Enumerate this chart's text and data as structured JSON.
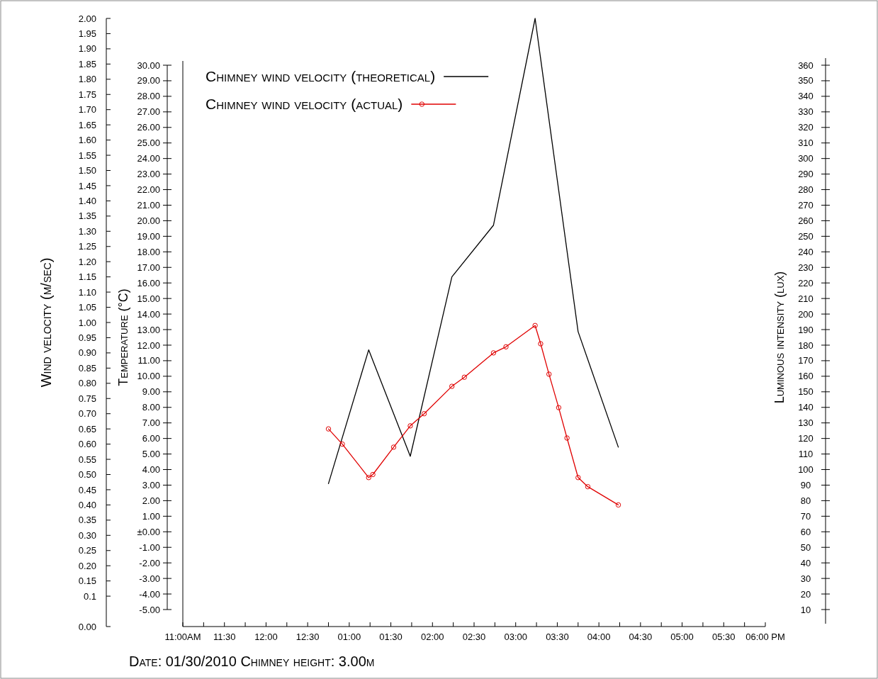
{
  "chart_data": {
    "type": "line",
    "ylabel": "Wind velocity (m/sec)",
    "y2label": "Temperature (°C)",
    "y3label": "Luminous intensity (lux)",
    "annotations": [
      "Date: 01/30/2010 Chimney height: 3.00m"
    ],
    "legend": "top left",
    "xlim": [
      "2010-01-30T11:00",
      "2010-01-30T18:00"
    ],
    "xticks": [
      {
        "value": "2010-01-30T11:00",
        "label": "11:00AM"
      },
      {
        "value": "2010-01-30T11:15",
        "label": null
      },
      {
        "value": "2010-01-30T11:30",
        "label": "11:30"
      },
      {
        "value": "2010-01-30T11:45",
        "label": null
      },
      {
        "value": "2010-01-30T12:00",
        "label": "12:00"
      },
      {
        "value": "2010-01-30T12:15",
        "label": null
      },
      {
        "value": "2010-01-30T12:30",
        "label": "12:30"
      },
      {
        "value": "2010-01-30T12:45",
        "label": null
      },
      {
        "value": "2010-01-30T13:00",
        "label": "01:00"
      },
      {
        "value": "2010-01-30T13:15",
        "label": null
      },
      {
        "value": "2010-01-30T13:30",
        "label": "01:30"
      },
      {
        "value": "2010-01-30T13:45",
        "label": null
      },
      {
        "value": "2010-01-30T14:00",
        "label": "02:00"
      },
      {
        "value": "2010-01-30T14:15",
        "label": null
      },
      {
        "value": "2010-01-30T14:30",
        "label": "02:30"
      },
      {
        "value": "2010-01-30T14:45",
        "label": null
      },
      {
        "value": "2010-01-30T15:00",
        "label": "03:00"
      },
      {
        "value": "2010-01-30T15:15",
        "label": null
      },
      {
        "value": "2010-01-30T15:30",
        "label": "03:30"
      },
      {
        "value": "2010-01-30T15:45",
        "label": null
      },
      {
        "value": "2010-01-30T16:00",
        "label": "04:00"
      },
      {
        "value": "2010-01-30T16:15",
        "label": null
      },
      {
        "value": "2010-01-30T16:30",
        "label": "04:30"
      },
      {
        "value": "2010-01-30T16:45",
        "label": null
      },
      {
        "value": "2010-01-30T17:00",
        "label": "05:00"
      },
      {
        "value": "2010-01-30T17:15",
        "label": null
      },
      {
        "value": "2010-01-30T17:30",
        "label": "05:30"
      },
      {
        "value": "2010-01-30T17:45",
        "label": null
      },
      {
        "value": "2010-01-30T18:00",
        "label": "06:00 PM"
      }
    ],
    "ylim": [
      0,
      2
    ],
    "yticks": [
      {
        "value": 0,
        "label": "0.00"
      },
      {
        "value": 0.1,
        "label": "0.1"
      },
      {
        "value": 0.15,
        "label": "0.15"
      },
      {
        "value": 0.2,
        "label": "0.20"
      },
      {
        "value": 0.25,
        "label": "0.25"
      },
      {
        "value": 0.3,
        "label": "0.30"
      },
      {
        "value": 0.35,
        "label": "0.35"
      },
      {
        "value": 0.4,
        "label": "0.40"
      },
      {
        "value": 0.45,
        "label": "0.45"
      },
      {
        "value": 0.5,
        "label": "0.50"
      },
      {
        "value": 0.55,
        "label": "0.55"
      },
      {
        "value": 0.6,
        "label": "0.60"
      },
      {
        "value": 0.65,
        "label": "0.65"
      },
      {
        "value": 0.7,
        "label": "0.70"
      },
      {
        "value": 0.75,
        "label": "0.75"
      },
      {
        "value": 0.8,
        "label": "0.80"
      },
      {
        "value": 0.85,
        "label": "0.85"
      },
      {
        "value": 0.9,
        "label": "0.90"
      },
      {
        "value": 0.95,
        "label": "0.95"
      },
      {
        "value": 1,
        "label": "1.00"
      },
      {
        "value": 1.05,
        "label": "1.05"
      },
      {
        "value": 1.1,
        "label": "1.10"
      },
      {
        "value": 1.15,
        "label": "1.15"
      },
      {
        "value": 1.2,
        "label": "1.20"
      },
      {
        "value": 1.25,
        "label": "1.25"
      },
      {
        "value": 1.3,
        "label": "1.30"
      },
      {
        "value": 1.35,
        "label": "1.35"
      },
      {
        "value": 1.4,
        "label": "1.40"
      },
      {
        "value": 1.45,
        "label": "1.45"
      },
      {
        "value": 1.5,
        "label": "1.50"
      },
      {
        "value": 1.55,
        "label": "1.55"
      },
      {
        "value": 1.6,
        "label": "1.60"
      },
      {
        "value": 1.65,
        "label": "1.65"
      },
      {
        "value": 1.7,
        "label": "1.70"
      },
      {
        "value": 1.75,
        "label": "1.75"
      },
      {
        "value": 1.8,
        "label": "1.80"
      },
      {
        "value": 1.85,
        "label": "1.85"
      },
      {
        "value": 1.9,
        "label": "1.90"
      },
      {
        "value": 1.95,
        "label": "1.95"
      },
      {
        "value": 2,
        "label": "2.00"
      }
    ],
    "y2lim": [
      -5,
      30
    ],
    "y2ticks": [
      {
        "value": -5,
        "label": "-5.00"
      },
      {
        "value": -4,
        "label": "-4.00"
      },
      {
        "value": -3,
        "label": "-3.00"
      },
      {
        "value": -2,
        "label": "-2.00"
      },
      {
        "value": -1,
        "label": "-1.00"
      },
      {
        "value": 0,
        "label": "±0.00"
      },
      {
        "value": 1,
        "label": "1.00"
      },
      {
        "value": 2,
        "label": "2.00"
      },
      {
        "value": 3,
        "label": "3.00"
      },
      {
        "value": 4,
        "label": "4.00"
      },
      {
        "value": 5,
        "label": "5.00"
      },
      {
        "value": 6,
        "label": "6.00"
      },
      {
        "value": 7,
        "label": "7.00"
      },
      {
        "value": 8,
        "label": "8.00"
      },
      {
        "value": 9,
        "label": "9.00"
      },
      {
        "value": 10,
        "label": "10.00"
      },
      {
        "value": 11,
        "label": "11.00"
      },
      {
        "value": 12,
        "label": "12.00"
      },
      {
        "value": 13,
        "label": "13.00"
      },
      {
        "value": 14,
        "label": "14.00"
      },
      {
        "value": 15,
        "label": "15.00"
      },
      {
        "value": 16,
        "label": "16.00"
      },
      {
        "value": 17,
        "label": "17.00"
      },
      {
        "value": 18,
        "label": "18.00"
      },
      {
        "value": 19,
        "label": "19.00"
      },
      {
        "value": 20,
        "label": "20.00"
      },
      {
        "value": 21,
        "label": "21.00"
      },
      {
        "value": 22,
        "label": "22.00"
      },
      {
        "value": 23,
        "label": "23.00"
      },
      {
        "value": 24,
        "label": "24.00"
      },
      {
        "value": 25,
        "label": "25.00"
      },
      {
        "value": 26,
        "label": "26.00"
      },
      {
        "value": 27,
        "label": "27.00"
      },
      {
        "value": 28,
        "label": "28.00"
      },
      {
        "value": 29,
        "label": "29.00"
      },
      {
        "value": 30,
        "label": "30.00"
      }
    ],
    "y3lim": [
      10,
      360
    ],
    "y3ticks": [
      10,
      20,
      30,
      40,
      50,
      60,
      70,
      80,
      90,
      100,
      110,
      120,
      130,
      140,
      150,
      160,
      170,
      180,
      190,
      200,
      210,
      220,
      230,
      240,
      250,
      260,
      270,
      280,
      290,
      300,
      310,
      320,
      330,
      340,
      350,
      360
    ],
    "series": [
      {
        "name": "Chimney wind velocity (theoretical)",
        "color": "#000000",
        "marker": "none",
        "x": [
          "2010-01-30T12:45",
          "2010-01-30T13:14",
          "2010-01-30T13:44",
          "2010-01-30T14:14",
          "2010-01-30T14:44",
          "2010-01-30T15:14",
          "2010-01-30T15:45",
          "2010-01-30T16:14"
        ],
        "values": [
          0.47,
          0.91,
          0.56,
          1.15,
          1.32,
          2.0,
          0.97,
          0.59
        ]
      },
      {
        "name": "Chimney wind velocity (actual)",
        "color": "#e00000",
        "marker": "circle",
        "x": [
          "2010-01-30T12:45",
          "2010-01-30T12:55",
          "2010-01-30T13:14",
          "2010-01-30T13:17",
          "2010-01-30T13:32",
          "2010-01-30T13:44",
          "2010-01-30T13:54",
          "2010-01-30T14:14",
          "2010-01-30T14:23",
          "2010-01-30T14:44",
          "2010-01-30T14:53",
          "2010-01-30T15:14",
          "2010-01-30T15:18",
          "2010-01-30T15:24",
          "2010-01-30T15:31",
          "2010-01-30T15:37",
          "2010-01-30T15:45",
          "2010-01-30T15:52",
          "2010-01-30T16:14"
        ],
        "values": [
          0.65,
          0.6,
          0.49,
          0.5,
          0.59,
          0.66,
          0.7,
          0.79,
          0.82,
          0.9,
          0.92,
          0.99,
          0.93,
          0.83,
          0.72,
          0.62,
          0.49,
          0.46,
          0.4
        ]
      }
    ]
  }
}
